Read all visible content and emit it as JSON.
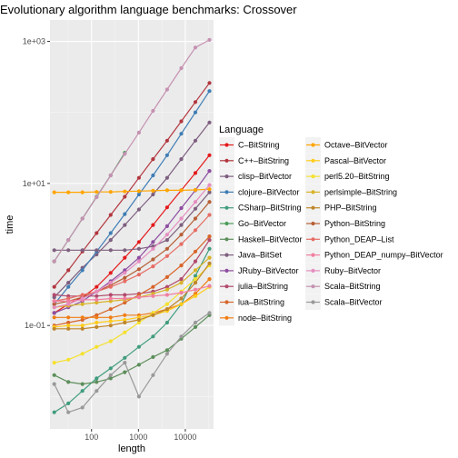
{
  "chart_data": {
    "type": "line",
    "title": "Evolutionary algorithm language benchmarks: Crossover",
    "xlabel": "length",
    "ylabel": "time",
    "xscale": "log10",
    "yscale": "log10",
    "xlim": [
      13,
      40000
    ],
    "ylim": [
      0.0035,
      2000
    ],
    "x_ticks": [
      {
        "value": 100,
        "label": "100"
      },
      {
        "value": 1000,
        "label": "1000"
      },
      {
        "value": 10000,
        "label": "10000"
      }
    ],
    "y_ticks": [
      {
        "value": 0.1,
        "label": "1e-01"
      },
      {
        "value": 10,
        "label": "1e+01"
      },
      {
        "value": 1000,
        "label": "1e+03"
      }
    ],
    "grid": true,
    "legend_title": "Language",
    "legend_position": "right",
    "x": [
      16,
      32,
      64,
      128,
      256,
      512,
      1024,
      2048,
      4096,
      8192,
      16384,
      32768
    ],
    "series": [
      {
        "name": "C–BitString",
        "color": "#E41A1C",
        "values": [
          0.15,
          0.2,
          0.25,
          0.35,
          0.55,
          0.9,
          1.5,
          2.6,
          4.6,
          8,
          14,
          25
        ]
      },
      {
        "name": "C++–BitString",
        "color": "#B2363E",
        "values": [
          0.35,
          0.6,
          1.1,
          2.0,
          3.6,
          6.5,
          12,
          22,
          40,
          75,
          140,
          260
        ]
      },
      {
        "name": "clisp–BitVector",
        "color": "#7D5E7F",
        "values": [
          0.25,
          0.4,
          0.65,
          1.0,
          1.6,
          2.6,
          4.3,
          7,
          12,
          22,
          40,
          72
        ]
      },
      {
        "name": "clojure–BitVector",
        "color": "#3F7DB5",
        "values": [
          0.2,
          0.35,
          0.6,
          1.1,
          2.0,
          3.7,
          7,
          13,
          25,
          50,
          100,
          200
        ]
      },
      {
        "name": "CSharp–BitString",
        "color": "#409C7F",
        "values": [
          0.006,
          0.008,
          0.012,
          0.018,
          0.025,
          0.035,
          0.05,
          0.07,
          0.11,
          0.2,
          0.5,
          1.2
        ]
      },
      {
        "name": "Go–BitVector",
        "color": "#4A9D59",
        "values": [
          0.8,
          1.6,
          3.2,
          6.5,
          13,
          27,
          null,
          null,
          null,
          null,
          null,
          null
        ]
      },
      {
        "name": "Haskell–BitVector",
        "color": "#5C8E5A",
        "values": [
          0.02,
          0.016,
          0.015,
          0.016,
          0.018,
          0.022,
          0.028,
          0.036,
          0.045,
          0.065,
          0.095,
          0.14
        ]
      },
      {
        "name": "Java–BitSet",
        "color": "#7E5F7E",
        "values": [
          1.15,
          1.15,
          1.15,
          1.15,
          1.15,
          1.15,
          1.2,
          1.3,
          1.6,
          2.6,
          4.4,
          7.5
        ]
      },
      {
        "name": "JRuby–BitVector",
        "color": "#8E4EA0",
        "values": [
          0.15,
          0.18,
          0.22,
          0.3,
          0.42,
          0.6,
          0.9,
          1.5,
          2.5,
          4.5,
          8,
          15
        ]
      },
      {
        "name": "julia–BitString",
        "color": "#B24A6D",
        "values": [
          0.27,
          0.26,
          0.26,
          0.26,
          0.27,
          0.27,
          0.28,
          0.3,
          0.35,
          0.45,
          0.8,
          1.6
        ]
      },
      {
        "name": "lua–BitString",
        "color": "#D8652A",
        "values": [
          0.1,
          0.11,
          0.12,
          0.14,
          0.17,
          0.21,
          0.27,
          0.35,
          0.48,
          0.7,
          1.1,
          1.8
        ]
      },
      {
        "name": "node–BitString",
        "color": "#F07E17",
        "values": [
          0.13,
          0.13,
          0.13,
          0.13,
          0.13,
          0.14,
          0.14,
          0.15,
          0.17,
          0.2,
          0.28,
          0.45
        ]
      },
      {
        "name": "Octave–BitVector",
        "color": "#FFA500",
        "values": [
          7.5,
          7.5,
          7.5,
          7.6,
          7.6,
          7.7,
          7.8,
          7.9,
          8.0,
          8.0,
          8.1,
          8.3
        ]
      },
      {
        "name": "Pascal–BitVector",
        "color": "#FFCC1A",
        "values": [
          0.095,
          0.1,
          0.1,
          0.11,
          0.115,
          0.12,
          0.13,
          0.14,
          0.16,
          0.2,
          0.26,
          0.35
        ]
      },
      {
        "name": "perl5.20–BitString",
        "color": "#F5E12D",
        "values": [
          0.03,
          0.033,
          0.04,
          0.05,
          0.06,
          0.08,
          0.11,
          0.15,
          0.2,
          0.3,
          0.45,
          0.7
        ]
      },
      {
        "name": "perlsimple–BitString",
        "color": "#D8B327",
        "values": [
          0.18,
          0.19,
          0.2,
          0.21,
          0.22,
          0.23,
          0.25,
          0.28,
          0.32,
          0.4,
          0.6,
          0.9
        ]
      },
      {
        "name": "PHP–BitString",
        "color": "#BF862B",
        "values": [
          0.09,
          0.09,
          0.09,
          0.095,
          0.1,
          0.11,
          0.12,
          0.14,
          0.17,
          0.24,
          0.4,
          0.75
        ]
      },
      {
        "name": "Python–BitString",
        "color": "#B75F36",
        "values": [
          0.2,
          0.22,
          0.25,
          0.3,
          0.37,
          0.47,
          0.62,
          0.85,
          1.2,
          1.9,
          3.2,
          5.5
        ]
      },
      {
        "name": "Python_DEAP–List",
        "color": "#E66D64",
        "values": [
          0.22,
          0.24,
          0.27,
          0.3,
          0.35,
          0.42,
          0.52,
          0.68,
          0.95,
          1.4,
          2.2,
          3.6
        ]
      },
      {
        "name": "Python_DEAP_numpy–BitVector",
        "color": "#F17FA1",
        "values": [
          0.22,
          0.22,
          0.23,
          0.23,
          0.24,
          0.24,
          0.25,
          0.26,
          0.27,
          0.29,
          0.32,
          0.36
        ]
      },
      {
        "name": "Ruby–BitVector",
        "color": "#E58DC0",
        "values": [
          0.18,
          0.2,
          0.24,
          0.3,
          0.4,
          0.55,
          0.8,
          1.2,
          1.9,
          3.2,
          5.5,
          9.5
        ]
      },
      {
        "name": "Scala–BitString",
        "color": "#C591B1",
        "values": [
          0.8,
          1.6,
          3.2,
          6.4,
          13,
          26,
          52,
          105,
          210,
          420,
          820,
          1050
        ]
      },
      {
        "name": "Scala–BitVector",
        "color": "#999999",
        "values": [
          0.015,
          0.006,
          0.007,
          0.012,
          0.02,
          0.03,
          0.01,
          0.02,
          0.04,
          0.07,
          0.11,
          0.15
        ]
      }
    ]
  }
}
